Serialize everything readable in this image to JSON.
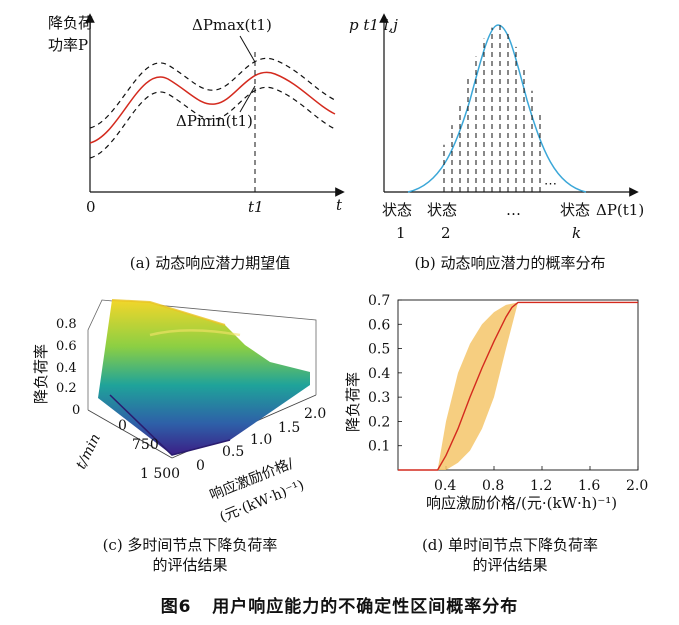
{
  "figure": {
    "caption_label": "图6",
    "caption_text": "用户响应能力的不确定性区间概率分布"
  },
  "panel_a": {
    "ylabel_line1": "降负荷",
    "ylabel_line2": "功率P",
    "xlabel": "t",
    "tick_zero": "0",
    "tick_t1": "t1",
    "label_max": "ΔPmax(t1)",
    "label_min": "ΔPmin(t1)",
    "caption": "(a) 动态响应潜力期望值"
  },
  "panel_b": {
    "ylabel": "p t1 i,j",
    "xlabel": "ΔP(t1)",
    "state_labels": [
      {
        "top": "状态",
        "bottom": "1"
      },
      {
        "top": "状态",
        "bottom": "2"
      },
      {
        "top": "…",
        "bottom": ""
      },
      {
        "top": "状态",
        "bottom": "k"
      }
    ],
    "caption": "(b) 动态响应潜力的概率分布"
  },
  "panel_c": {
    "zlabel": "降负荷率",
    "ztick_labels": [
      "0",
      "0.2",
      "0.4",
      "0.6",
      "0.8"
    ],
    "t_label": "t/min",
    "t_ticks": [
      "0",
      "750",
      "1 500"
    ],
    "price_ticks": [
      "0",
      "0.5",
      "1.0",
      "1.5",
      "2.0"
    ],
    "price_label_line1": "响应激励价格/",
    "price_label_line2": "(元·(kW·h)⁻¹)",
    "caption_line1": "(c) 多时间节点下降负荷率",
    "caption_line2": "的评估结果"
  },
  "panel_d": {
    "ylabel": "降负荷率",
    "xlabel": "响应激励价格/(元·(kW·h)⁻¹)",
    "caption_line1": "(d) 单时间节点下降负荷率",
    "caption_line2": "的评估结果",
    "colors": {
      "mean": "#d42a1e",
      "band": "#f4c56a"
    }
  },
  "chart_data": [
    {
      "type": "line",
      "title": "",
      "xlabel": "t",
      "ylabel": "降负荷功率P",
      "series": [
        {
          "name": "ΔPmax(t1)",
          "x": [
            0,
            0.15,
            0.3,
            0.45,
            0.55,
            0.65,
            0.75,
            0.85,
            1.0
          ],
          "values": [
            0.6,
            0.75,
            0.9,
            0.72,
            0.74,
            0.82,
            0.85,
            0.76,
            0.62
          ]
        },
        {
          "name": "",
          "x": [
            0,
            0.15,
            0.3,
            0.45,
            0.55,
            0.65,
            0.75,
            0.85,
            1.0
          ],
          "values": [
            0.48,
            0.63,
            0.78,
            0.6,
            0.62,
            0.7,
            0.73,
            0.64,
            0.5
          ]
        },
        {
          "name": "ΔPmin(t1)",
          "x": [
            0,
            0.15,
            0.3,
            0.45,
            0.55,
            0.65,
            0.75,
            0.85,
            1.0
          ],
          "values": [
            0.36,
            0.51,
            0.66,
            0.48,
            0.5,
            0.58,
            0.61,
            0.52,
            0.38
          ]
        }
      ]
    },
    {
      "type": "line",
      "title": "",
      "xlabel": "ΔP(t1)",
      "ylabel": "p t1 i,j",
      "x": [
        0.0,
        0.1,
        0.2,
        0.3,
        0.4,
        0.5,
        0.6,
        0.7,
        0.8,
        0.9,
        1.0
      ],
      "values": [
        0.0,
        0.03,
        0.12,
        0.35,
        0.72,
        1.0,
        0.82,
        0.48,
        0.2,
        0.06,
        0.0
      ]
    },
    {
      "type": "area",
      "title": "",
      "xlabel": "响应激励价格/(元·(kW·h)⁻¹)",
      "ylabel": "降负荷率",
      "ylim": [
        0,
        0.7
      ],
      "xlim": [
        0,
        2.0
      ],
      "x_ticks": [
        0.4,
        0.8,
        1.2,
        1.6,
        2.0
      ],
      "y_ticks": [
        0.1,
        0.2,
        0.3,
        0.4,
        0.5,
        0.6,
        0.7
      ],
      "series": [
        {
          "name": "",
          "x": [
            0.0,
            0.33,
            0.4,
            0.5,
            0.6,
            0.7,
            0.8,
            0.9,
            0.95,
            1.0,
            2.0
          ],
          "values": [
            0.0,
            0.0,
            0.06,
            0.17,
            0.3,
            0.42,
            0.53,
            0.63,
            0.67,
            0.69,
            0.69
          ]
        },
        {
          "name": "",
          "x": [
            0.33,
            0.4,
            0.5,
            0.6,
            0.7,
            0.8,
            0.9,
            1.0
          ],
          "values": [
            0.0,
            0.2,
            0.4,
            0.52,
            0.6,
            0.65,
            0.68,
            0.69
          ]
        },
        {
          "name": "",
          "x": [
            0.33,
            0.4,
            0.5,
            0.6,
            0.7,
            0.8,
            0.9,
            1.0
          ],
          "values": [
            0.0,
            0.0,
            0.03,
            0.08,
            0.17,
            0.3,
            0.5,
            0.69
          ]
        }
      ]
    }
  ]
}
